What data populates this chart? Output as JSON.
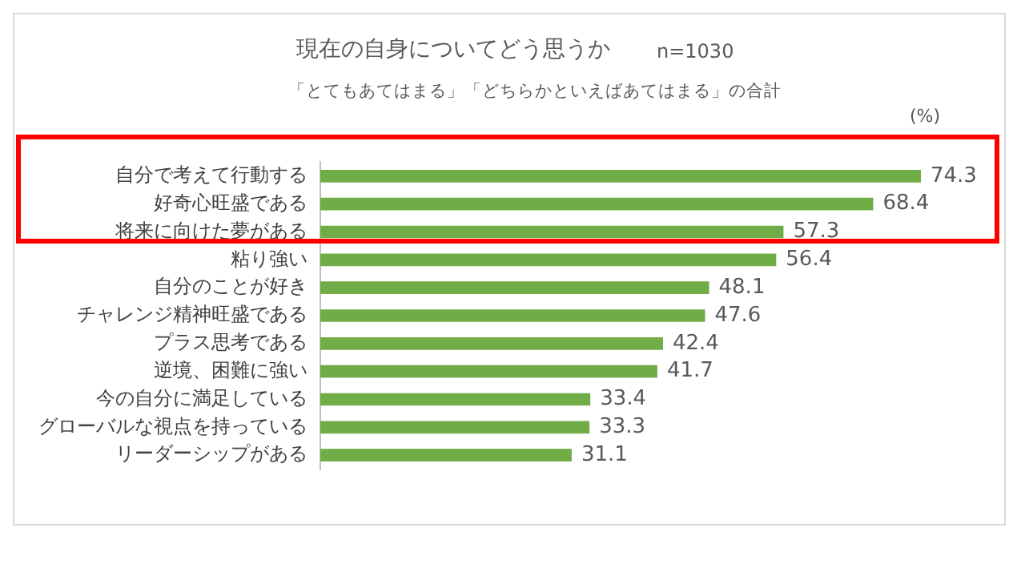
{
  "chart_data": {
    "type": "bar",
    "orientation": "horizontal",
    "title": "現在の自身についてどう思うか",
    "subtitle": "「とてもあてはまる」「どちらかといえばあてはまる」の合計",
    "annotations": [
      "n=1030",
      "(%)"
    ],
    "categories": [
      "自分で考えて行動する",
      "好奇心旺盛である",
      "将来に向けた夢がある",
      "粘り強い",
      "自分のことが好き",
      "チャレンジ精神旺盛である",
      "プラス思考である",
      "逆境、困難に強い",
      "今の自分に満足している",
      "グローバルな視点を持っている",
      "リーダーシップがある"
    ],
    "values": [
      74.3,
      68.4,
      57.3,
      56.4,
      48.1,
      47.6,
      42.4,
      41.7,
      33.4,
      33.3,
      31.1
    ],
    "color": "#70ad47",
    "data_labels": true,
    "legend": false
  }
}
